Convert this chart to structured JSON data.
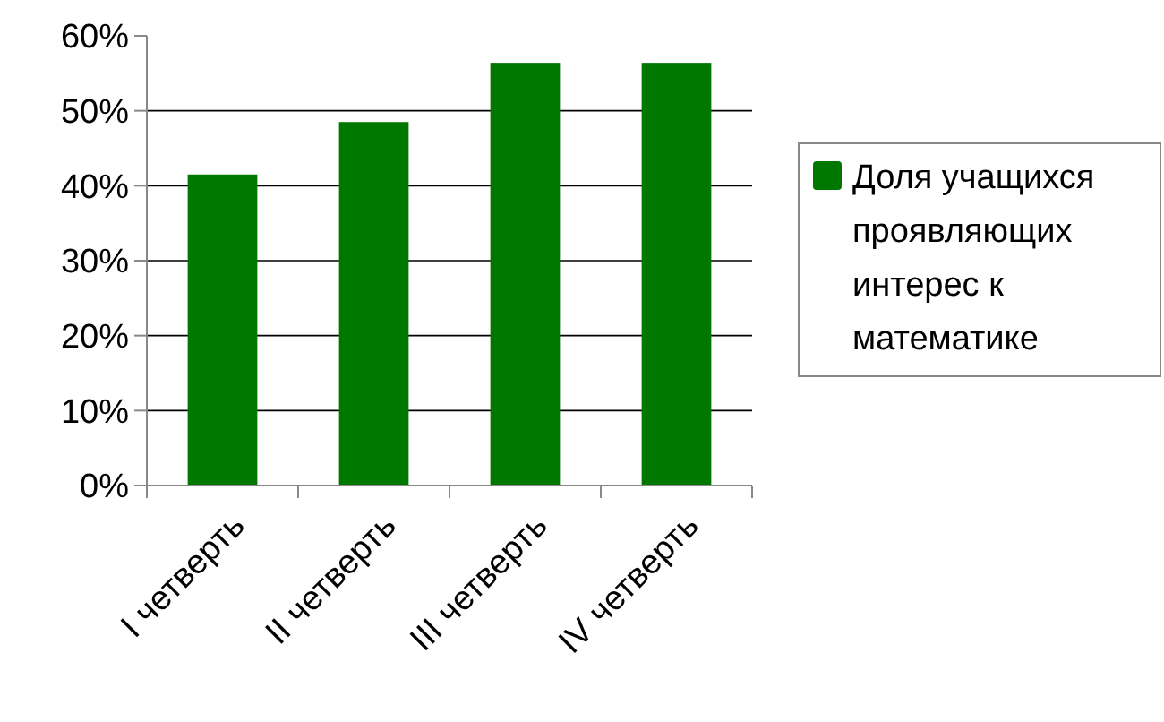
{
  "chart_data": {
    "type": "bar",
    "categories": [
      "I четверть",
      "II четверть",
      "III четверть",
      "IV четверть"
    ],
    "series": [
      {
        "name": "Доля учащихся проявляющих интерес к математике",
        "color": "#007800",
        "values": [
          41.5,
          48.5,
          56.4,
          56.4
        ]
      }
    ],
    "ylim": [
      0,
      60
    ],
    "yticks": [
      {
        "value": 0,
        "label": "0%"
      },
      {
        "value": 10,
        "label": "10%"
      },
      {
        "value": 20,
        "label": "20%"
      },
      {
        "value": 30,
        "label": "30%"
      },
      {
        "value": 40,
        "label": "40%"
      },
      {
        "value": 50,
        "label": "50%"
      },
      {
        "value": 60,
        "label": "60%"
      }
    ],
    "grid": "y",
    "legend": "right"
  }
}
